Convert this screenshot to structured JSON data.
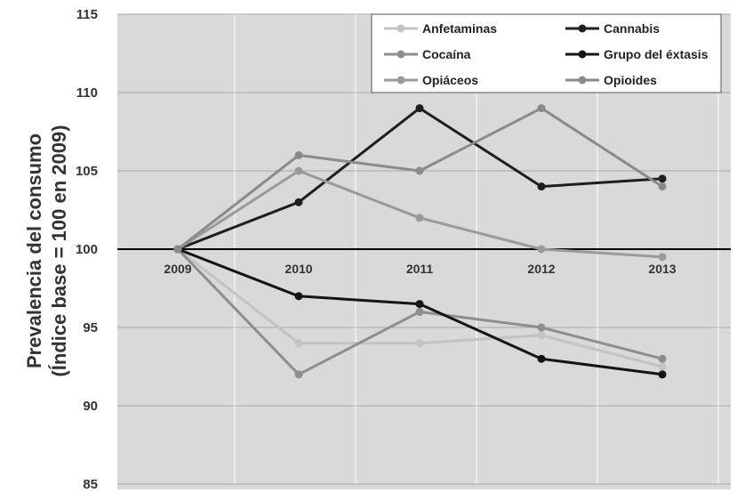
{
  "chart_data": {
    "type": "line",
    "title": "",
    "xlabel": "",
    "ylabel_line1": "Prevalencia del consumo",
    "ylabel_line2": "(Índice base = 100 en 2009)",
    "ylim": [
      85,
      115
    ],
    "yticks": [
      85,
      90,
      95,
      100,
      105,
      110,
      115
    ],
    "categories": [
      "2009",
      "2010",
      "2011",
      "2012",
      "2013"
    ],
    "grid": true,
    "legend_position": "top-right",
    "series": [
      {
        "name": "Anfetaminas",
        "color": "#c3c3c3",
        "values": [
          100,
          94,
          94,
          94.5,
          92.5
        ]
      },
      {
        "name": "Cannabis",
        "color": "#1e1e1e",
        "values": [
          100,
          103,
          109,
          104,
          104.5
        ]
      },
      {
        "name": "Cocaína",
        "color": "#8e8e8e",
        "values": [
          100,
          92,
          96,
          95,
          93
        ]
      },
      {
        "name": "Grupo del éxtasis",
        "color": "#141414",
        "values": [
          100,
          97,
          96.5,
          93,
          92
        ]
      },
      {
        "name": "Opiáceos",
        "color": "#9a9a9a",
        "values": [
          100,
          105,
          102,
          100,
          99.5
        ]
      },
      {
        "name": "Opioides",
        "color": "#8a8a8a",
        "values": [
          100,
          106,
          105,
          109,
          104
        ]
      }
    ]
  }
}
